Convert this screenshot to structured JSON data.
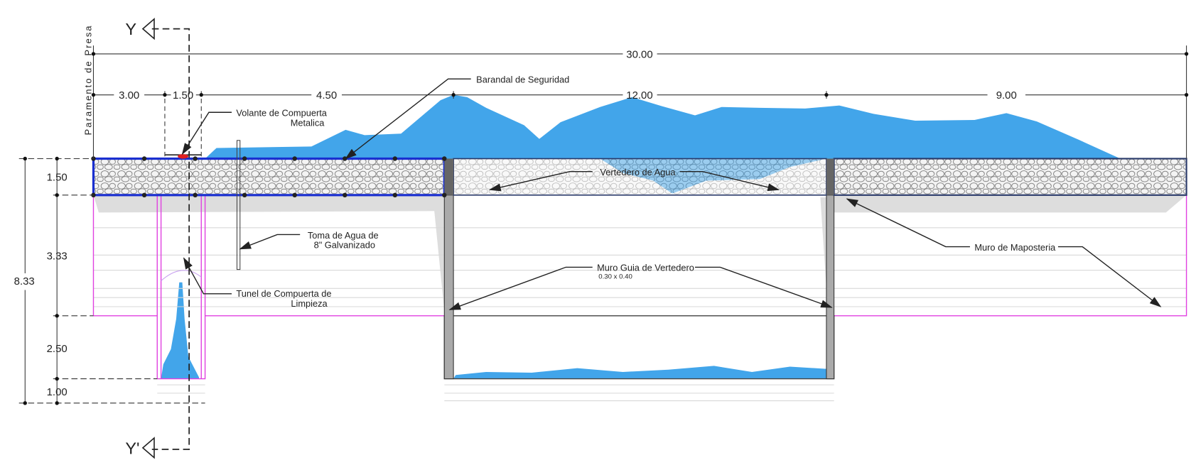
{
  "section": {
    "start": "Y",
    "end": "Y'"
  },
  "side_labels": {
    "left": "Paramento de Presa"
  },
  "dimensions": {
    "total": "30.00",
    "horizontal": [
      "3.00",
      "1.50",
      "4.50",
      "12.00",
      "9.00"
    ],
    "vertical": [
      "1.50",
      "3.33",
      "2.50",
      "1.00"
    ],
    "vertical_total": "8.33"
  },
  "callouts": {
    "railing": "Barandal de Seguridad",
    "gate_wheel": [
      "Volante de Compuerta",
      "Metalica"
    ],
    "spillway": "Vertedero de Agua",
    "intake": [
      "Toma de Agua de",
      "8\" Galvanizado"
    ],
    "tunnel": [
      "Tunel de Compuerta de",
      "Limpieza"
    ],
    "guide_wall": "Muro Guia de Vertedero",
    "guide_wall_size": "0.30 x 0.40",
    "masonry": "Muro de Maposteria"
  }
}
